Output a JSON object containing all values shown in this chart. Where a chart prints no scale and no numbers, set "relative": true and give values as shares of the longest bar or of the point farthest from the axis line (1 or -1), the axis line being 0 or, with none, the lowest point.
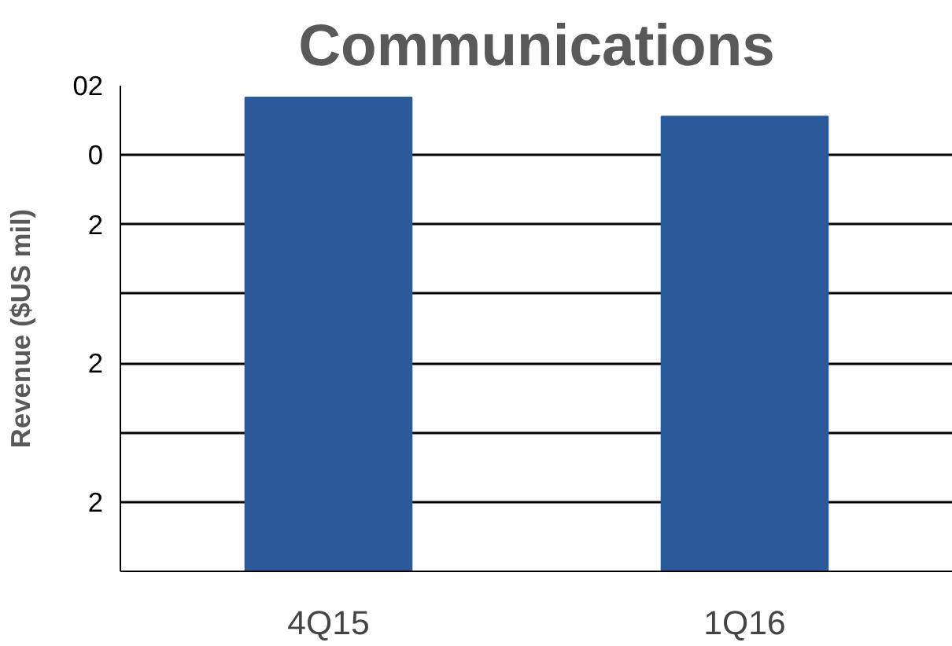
{
  "chart_data": {
    "type": "bar",
    "title": "Communications",
    "ylabel": "Revenue ($US mil)",
    "categories": [
      "4Q15",
      "1Q16"
    ],
    "values": [
      1,
      0.96
    ],
    "color": "#2a5a9a",
    "relative": true,
    "annotations": [
      "02",
      "0",
      "2",
      "2",
      "2"
    ],
    "grid": "y"
  }
}
